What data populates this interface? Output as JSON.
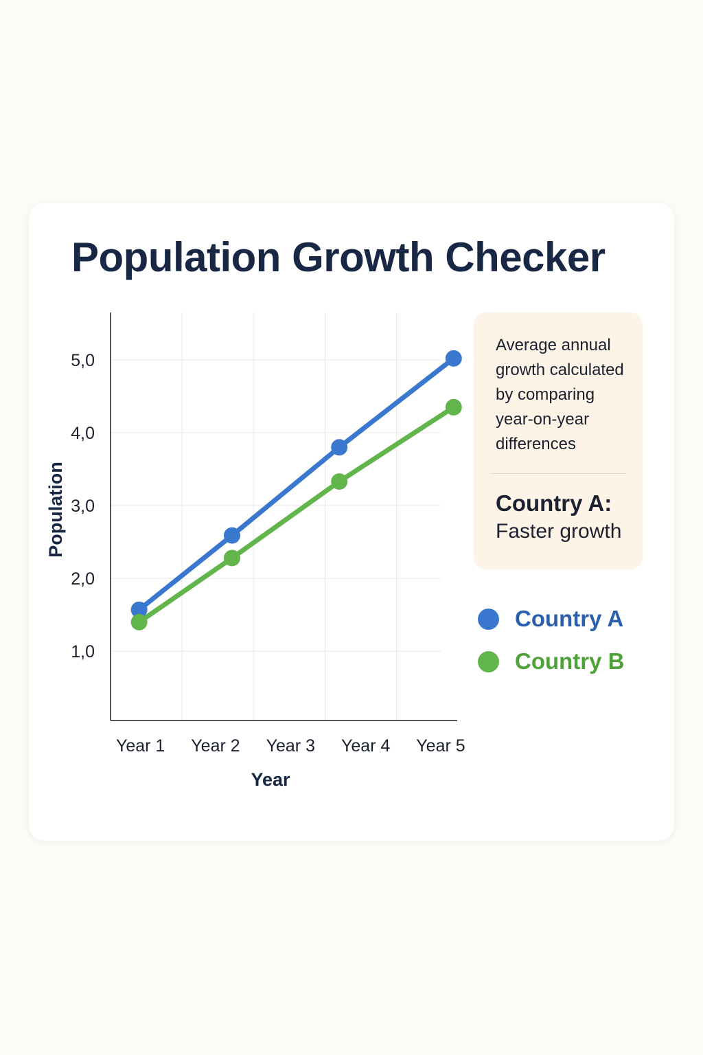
{
  "title": "Population Growth Checker",
  "info": {
    "text": "Average annual growth calculated by comparing year-on-year differences",
    "heading": "Country A:",
    "subtext": "Faster growth"
  },
  "colors": {
    "country_a": "#3a78cf",
    "country_b": "#62b54a",
    "title": "#182744",
    "axis": "#555555",
    "grid": "#e8e8e8"
  },
  "chart_data": {
    "type": "line",
    "title": "Population Growth Checker",
    "xlabel": "Year",
    "ylabel": "Population",
    "categories": [
      "Year 1",
      "Year 2",
      "Year 3",
      "Year 4",
      "Year 5"
    ],
    "x": [
      1.2,
      2.5,
      4.0,
      5.6
    ],
    "yticks": [
      "1,0",
      "2,0",
      "3,0",
      "4,0",
      "5,0"
    ],
    "ytick_values": [
      1,
      2,
      3,
      4,
      5
    ],
    "ylim": [
      0.05,
      5.65
    ],
    "xlim": [
      0.8,
      5.65
    ],
    "grid": true,
    "legend_position": "right",
    "series": [
      {
        "name": "Country A",
        "color": "#3a78cf",
        "values": [
          1.57,
          2.59,
          3.8,
          5.02
        ]
      },
      {
        "name": "Country B",
        "color": "#62b54a",
        "values": [
          1.4,
          2.28,
          3.33,
          4.35
        ]
      }
    ]
  }
}
